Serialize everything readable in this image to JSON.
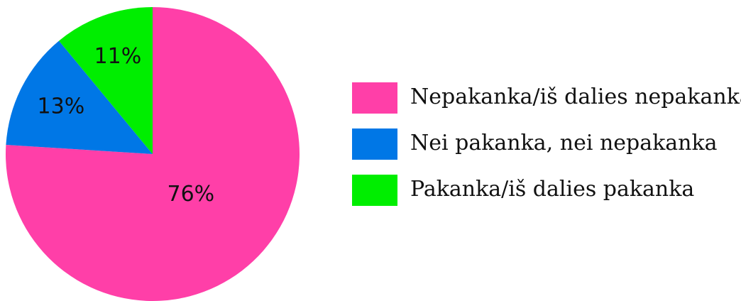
{
  "chart_data": {
    "type": "pie",
    "categories": [
      "Nepakanka/iš dalies nepakanka",
      "Nei pakanka, nei nepakanka",
      "Pakanka/iš dalies pakanka"
    ],
    "values": [
      76,
      13,
      11
    ],
    "value_labels": [
      "76%",
      "13%",
      "11%"
    ],
    "colors": [
      "#ff3fa8",
      "#0077e6",
      "#00ee00"
    ],
    "legend": "right"
  }
}
